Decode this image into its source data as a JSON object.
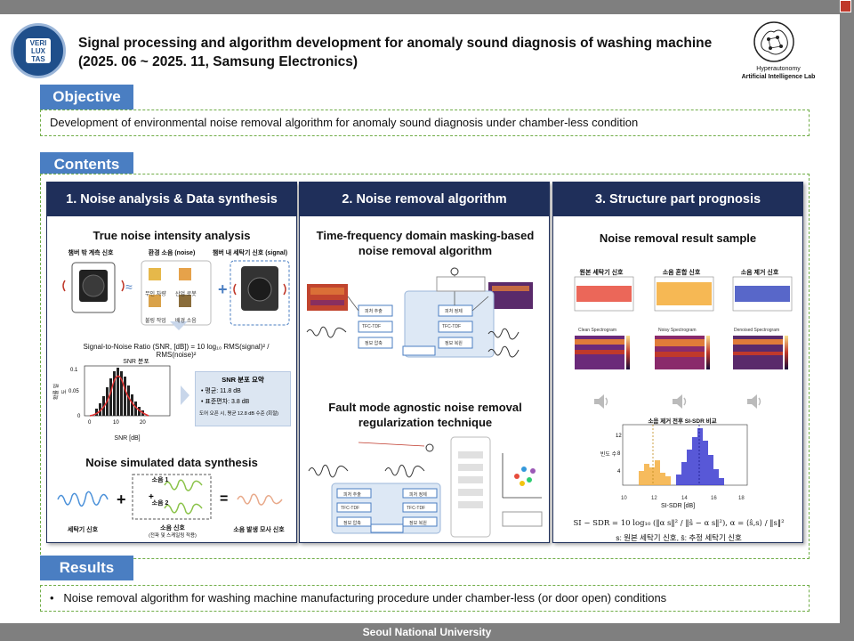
{
  "header": {
    "title_line1": "Signal processing and algorithm development for anomaly sound diagnosis of washing machine",
    "title_line2": "(2025. 06 ~ 2025. 11, Samsung Electronics)",
    "university_logo_text": "VERI LUX TAS MEA",
    "lab_logo_line1": "Hyperautonomy",
    "lab_logo_line2": "Artificial Intelligence Lab"
  },
  "objective": {
    "tag": "Objective",
    "text": "Development of environmental noise removal algorithm for anomaly sound diagnosis under chamber-less condition"
  },
  "contents": {
    "tag": "Contents",
    "col1": {
      "header": "1.   Noise analysis & Data synthesis",
      "sub1": "True noise intensity analysis",
      "label_chamber_out": "챔버 밖 계측 신호",
      "label_env_noise": "환경 소음 (noise)",
      "label_chamber_in": "챔버 내 세탁기 신호 (signal)",
      "noise_types": [
        "무인 차량",
        "산업 로봇",
        "불링 작업",
        "배경 소음"
      ],
      "snr_formula": "Signal-to-Noise Ratio (SNR, [dB]) = 10 log₁₀ RMS(signal)² / RMS(noise)²",
      "snr_dist_title": "SNR 분포",
      "snr_xlabel": "SNR [dB]",
      "snr_ylabel": "확률 밀도",
      "snr_summary_title": "SNR 분포 요약",
      "snr_mean": "• 평균: 11.8 dB",
      "snr_std": "• 표준편차: 3.8 dB",
      "snr_door": "도어 오픈 시, 평균 12.8 dB 수준 (회절)",
      "sub2": "Noise simulated data synthesis",
      "label_washer": "세탁기 신호",
      "label_noise1": "소음 1",
      "label_noise2": "소음 2",
      "label_noise_signal": "소음 신호",
      "label_noise_signal_note": "(전파 및 스케일링 적용)",
      "label_sim": "소음 발생 모사 신호"
    },
    "col2": {
      "header": "2. Noise removal algorithm",
      "sub1": "Time-frequency domain masking-based noise removal algorithm",
      "sub2": "Fault mode agnostic noise removal regularization technique",
      "block_tfc": "TFC-TDF",
      "block_feat": "피처 추출",
      "block_recon": "피처 정제",
      "block_enc": "정보 압축",
      "block_dec": "정보 복원"
    },
    "col3": {
      "header": "3. Structure part prognosis",
      "sub1": "Noise removal result sample",
      "plot_titles": [
        "원본 세탁기 신호",
        "소음 혼합 신호",
        "소음 제거 신호"
      ],
      "spec_titles": [
        "Clean Spectrogram",
        "Noisy Spectrogram",
        "Denoised Spectrogram"
      ],
      "hist_title": "소음 제거 전후 SI-SDR 비교",
      "hist_xlabel": "SI-SDR [dB]",
      "hist_ylabel": "빈도 수",
      "hist_ticks_x": [
        "10",
        "12",
        "14",
        "16",
        "18"
      ],
      "formula": "SI − SDR = 10 log₁₀ (‖α s‖² / ‖ŝ − α s‖²),  α = ⟨ŝ,s⟩ / ‖s‖²",
      "formula_note": "s: 원본 세탁기 신호, ŝ: 추정 세탁기 신호"
    }
  },
  "results": {
    "tag": "Results",
    "text": "Noise removal algorithm for washing machine manufacturing procedure under chamber-less (or door open) conditions"
  },
  "footer": "Seoul National University",
  "colors": {
    "accent": "#4a7ec2",
    "navy": "#1f2f5a",
    "dash": "#70ad47"
  }
}
